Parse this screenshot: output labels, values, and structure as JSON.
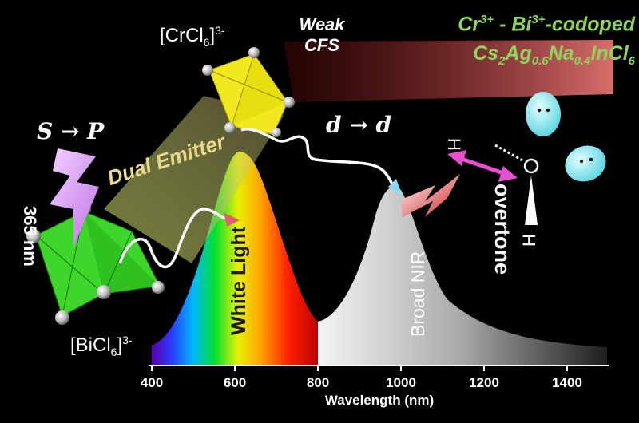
{
  "title_line1": {
    "pre": "Cr",
    "sup1": "3+",
    "mid": " - Bi",
    "sup2": "3+",
    "post": "-codoped"
  },
  "title_line2": {
    "a": "Cs",
    "s1": "2",
    "b": "Ag",
    "s2": "0.6",
    "c": "Na",
    "s3": "0.4",
    "d": "InCl",
    "s4": "6"
  },
  "cr_label": {
    "base": "[CrCl",
    "sub": "6",
    "close": "]",
    "sup": "3-"
  },
  "bi_label": {
    "base": "[BiCl",
    "sub": "6",
    "close": "]",
    "sup": "3-"
  },
  "weak_cfs": [
    "Weak",
    "CFS"
  ],
  "transition_sp": "S → P",
  "transition_dd": "d → d",
  "excitation": "365 nm",
  "dual_emitter": "Dual Emitter",
  "white_light": "White Light",
  "broad_nir": "Broad NIR",
  "overtone": "overtone",
  "water": {
    "h": "H",
    "o": "O"
  },
  "axis": {
    "xlabel": "Wavelength (nm)",
    "ticks": [
      "400",
      "600",
      "800",
      "1000",
      "1200",
      "1400"
    ]
  },
  "colors": {
    "title_green": "#8ed35a",
    "cr_octahedron": "#f2e81f",
    "bi_octahedron": "#3ed62a",
    "arrow_magenta": "#e64fd0",
    "lobe_cyan": "#7fe8ef"
  }
}
